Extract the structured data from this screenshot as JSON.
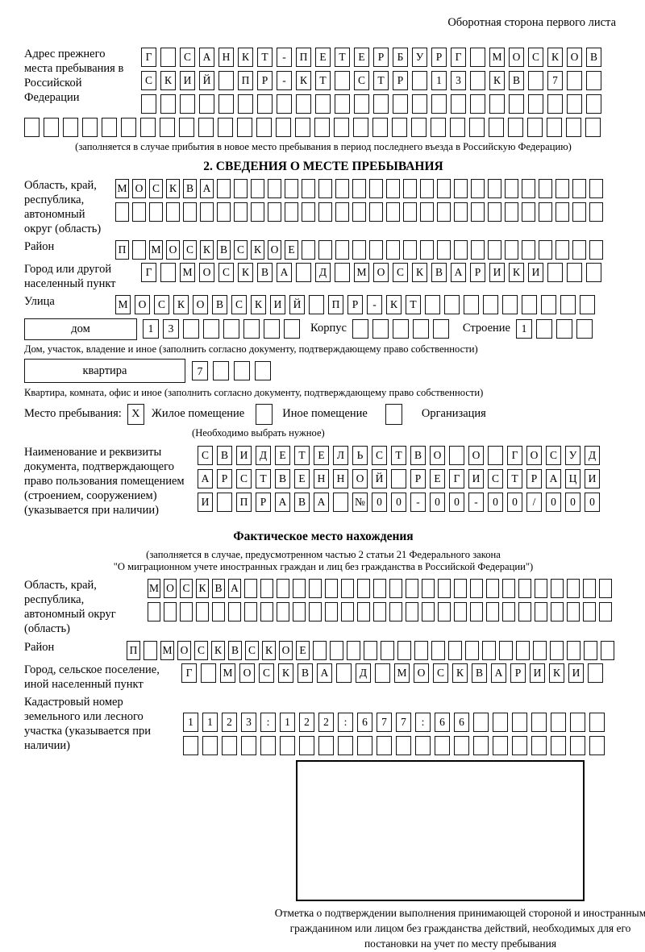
{
  "page": {
    "header_note": "Оборотная сторона первого листа"
  },
  "prev_address": {
    "label": "Адрес прежнего места пребывания в Российской Федерации",
    "rows": [
      {
        "text": "Г САНКТ-ПЕТЕРБУРГ МОСКОВ",
        "boxes": 24
      },
      {
        "text": "СКИЙ ПР-КТ СТР 13 КВ 7",
        "boxes": 24
      },
      {
        "text": "",
        "boxes": 24
      },
      {
        "text": "",
        "boxes": 30
      }
    ],
    "note": "(заполняется в случае прибытия в новое место пребывания в период последнего въезда в Российскую Федерацию)"
  },
  "section2": {
    "title": "2. СВЕДЕНИЯ О МЕСТЕ ПРЕБЫВАНИЯ",
    "region": {
      "label": "Область, край, республика, автономный округ (область)",
      "rows": [
        {
          "text": "МОСКВА",
          "boxes": 29
        },
        {
          "text": "",
          "boxes": 29
        }
      ]
    },
    "district": {
      "label": "Район",
      "row": {
        "text": "П МОСКВСКОЕ",
        "boxes": 29
      }
    },
    "city": {
      "label": "Город или другой населенный пункт",
      "row": {
        "text": "Г МОСКВА Д МОСКВАРИКИ",
        "boxes": 24
      }
    },
    "street": {
      "label": "Улица",
      "row": {
        "text": "МОСКОВСКИЙ ПР-КТ",
        "boxes": 25
      }
    },
    "house": {
      "type_label": "дом",
      "number": {
        "text": "13",
        "boxes": 8
      },
      "korpus_label": "Корпус",
      "korpus": {
        "text": "",
        "boxes": 5
      },
      "stroenie_label": "Строение",
      "stroenie": {
        "text": "1",
        "boxes": 4
      }
    },
    "house_note": "Дом, участок, владение и иное (заполнить согласно документу, подтверждающему право собственности)",
    "apartment": {
      "type_label": "квартира",
      "number": {
        "text": "7",
        "boxes": 4
      }
    },
    "apartment_note": "Квартира, комната, офис и иное (заполнить согласно документу, подтверждающему право собственности)",
    "stay_type": {
      "label": "Место пребывания:",
      "options": [
        {
          "label": "Жилое помещение",
          "mark": "X"
        },
        {
          "label": "Иное помещение",
          "mark": ""
        },
        {
          "label": "Организация",
          "mark": ""
        }
      ],
      "note": "(Необходимо выбрать нужное)"
    },
    "document": {
      "label": "Наименование и реквизиты документа, подтверждающего право пользования помещением (строением, сооружением) (указывается при наличии)",
      "rows": [
        {
          "text": "СВИДЕТЕЛЬСТВО О ГОСУД",
          "boxes": 21
        },
        {
          "text": "АРСТВЕННОЙ РЕГИСТРАЦИ",
          "boxes": 21
        },
        {
          "text": "И ПРАВА №00-00-00/000",
          "boxes": 21
        }
      ]
    }
  },
  "actual_location": {
    "title": "Фактическое место нахождения",
    "note_line1": "(заполняется в случае, предусмотренном частью 2 статьи 21 Федерального закона",
    "note_line2": "\"О миграционном учете иностранных граждан и лиц без гражданства в Российской Федерации\")",
    "region": {
      "label": "Область, край, республика, автономный округ (область)",
      "rows": [
        {
          "text": "МОСКВА",
          "boxes": 29
        },
        {
          "text": "",
          "boxes": 29
        }
      ]
    },
    "district": {
      "label": "Район",
      "row": {
        "text": "П МОСКВСКОЕ",
        "boxes": 29
      }
    },
    "city": {
      "label": "Город, сельское поселение, иной населенный пункт",
      "row": {
        "text": "Г МОСКВА Д МОСКВАРИКИ",
        "boxes": 22
      }
    },
    "cadastral": {
      "label": "Кадастровый номер земельного или лесного участка (указывается при наличии)",
      "rows": [
        {
          "text": "1123:122:677:66",
          "boxes": 22
        },
        {
          "text": "",
          "boxes": 22
        }
      ]
    },
    "stamp_note": "Отметка о подтверждении выполнения принимающей стороной и иностранным гражданином или лицом без гражданства действий, необходимых для его постановки на учет по месту пребывания"
  }
}
